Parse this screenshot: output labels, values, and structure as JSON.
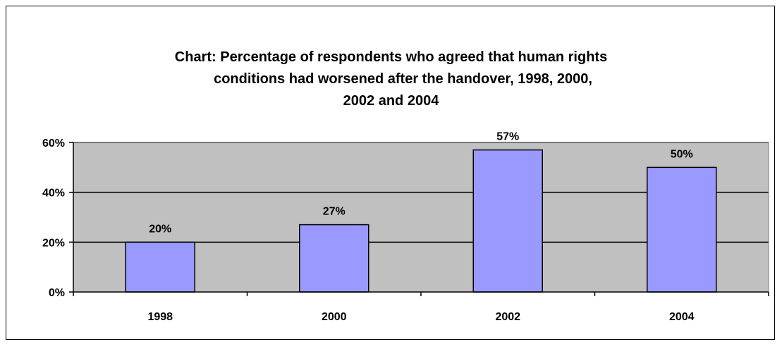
{
  "chart_data": {
    "type": "bar",
    "title_lines": [
      "Chart: Percentage of respondents who agreed that human rights",
      "conditions had worsened after the handover, 1998, 2000,",
      "2002 and 2004"
    ],
    "categories": [
      "1998",
      "2000",
      "2002",
      "2004"
    ],
    "values": [
      20,
      27,
      57,
      50
    ],
    "data_labels": [
      "20%",
      "27%",
      "57%",
      "50%"
    ],
    "y_ticks": [
      0,
      20,
      40,
      60
    ],
    "y_tick_labels": [
      "0%",
      "20%",
      "40%",
      "60%"
    ],
    "ylim": [
      0,
      60
    ],
    "grid": true,
    "legend": "none",
    "colors": {
      "bar": "#9999ff",
      "plot_background": "#c0c0c0",
      "outline": "#000000"
    }
  }
}
